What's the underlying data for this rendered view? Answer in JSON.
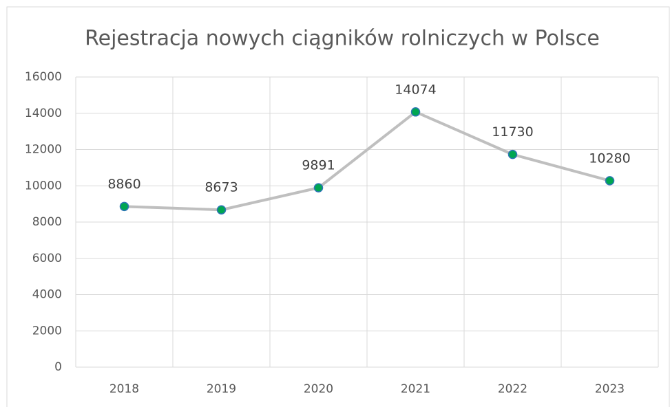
{
  "chart_data": {
    "type": "line",
    "title": "Rejestracja nowych ciągników rolniczych w Polsce",
    "categories": [
      "2018",
      "2019",
      "2020",
      "2021",
      "2022",
      "2023"
    ],
    "series": [
      {
        "name": "Rejestracja",
        "color": "#bfbfbf",
        "marker_color": "#00a651",
        "marker_edge": "#2e75b6",
        "values": [
          8860,
          8673,
          9891,
          14074,
          11730,
          10280
        ]
      }
    ],
    "ylim": [
      0,
      16000
    ],
    "yticks": [
      0,
      2000,
      4000,
      6000,
      8000,
      10000,
      12000,
      14000,
      16000
    ],
    "grid": true
  }
}
